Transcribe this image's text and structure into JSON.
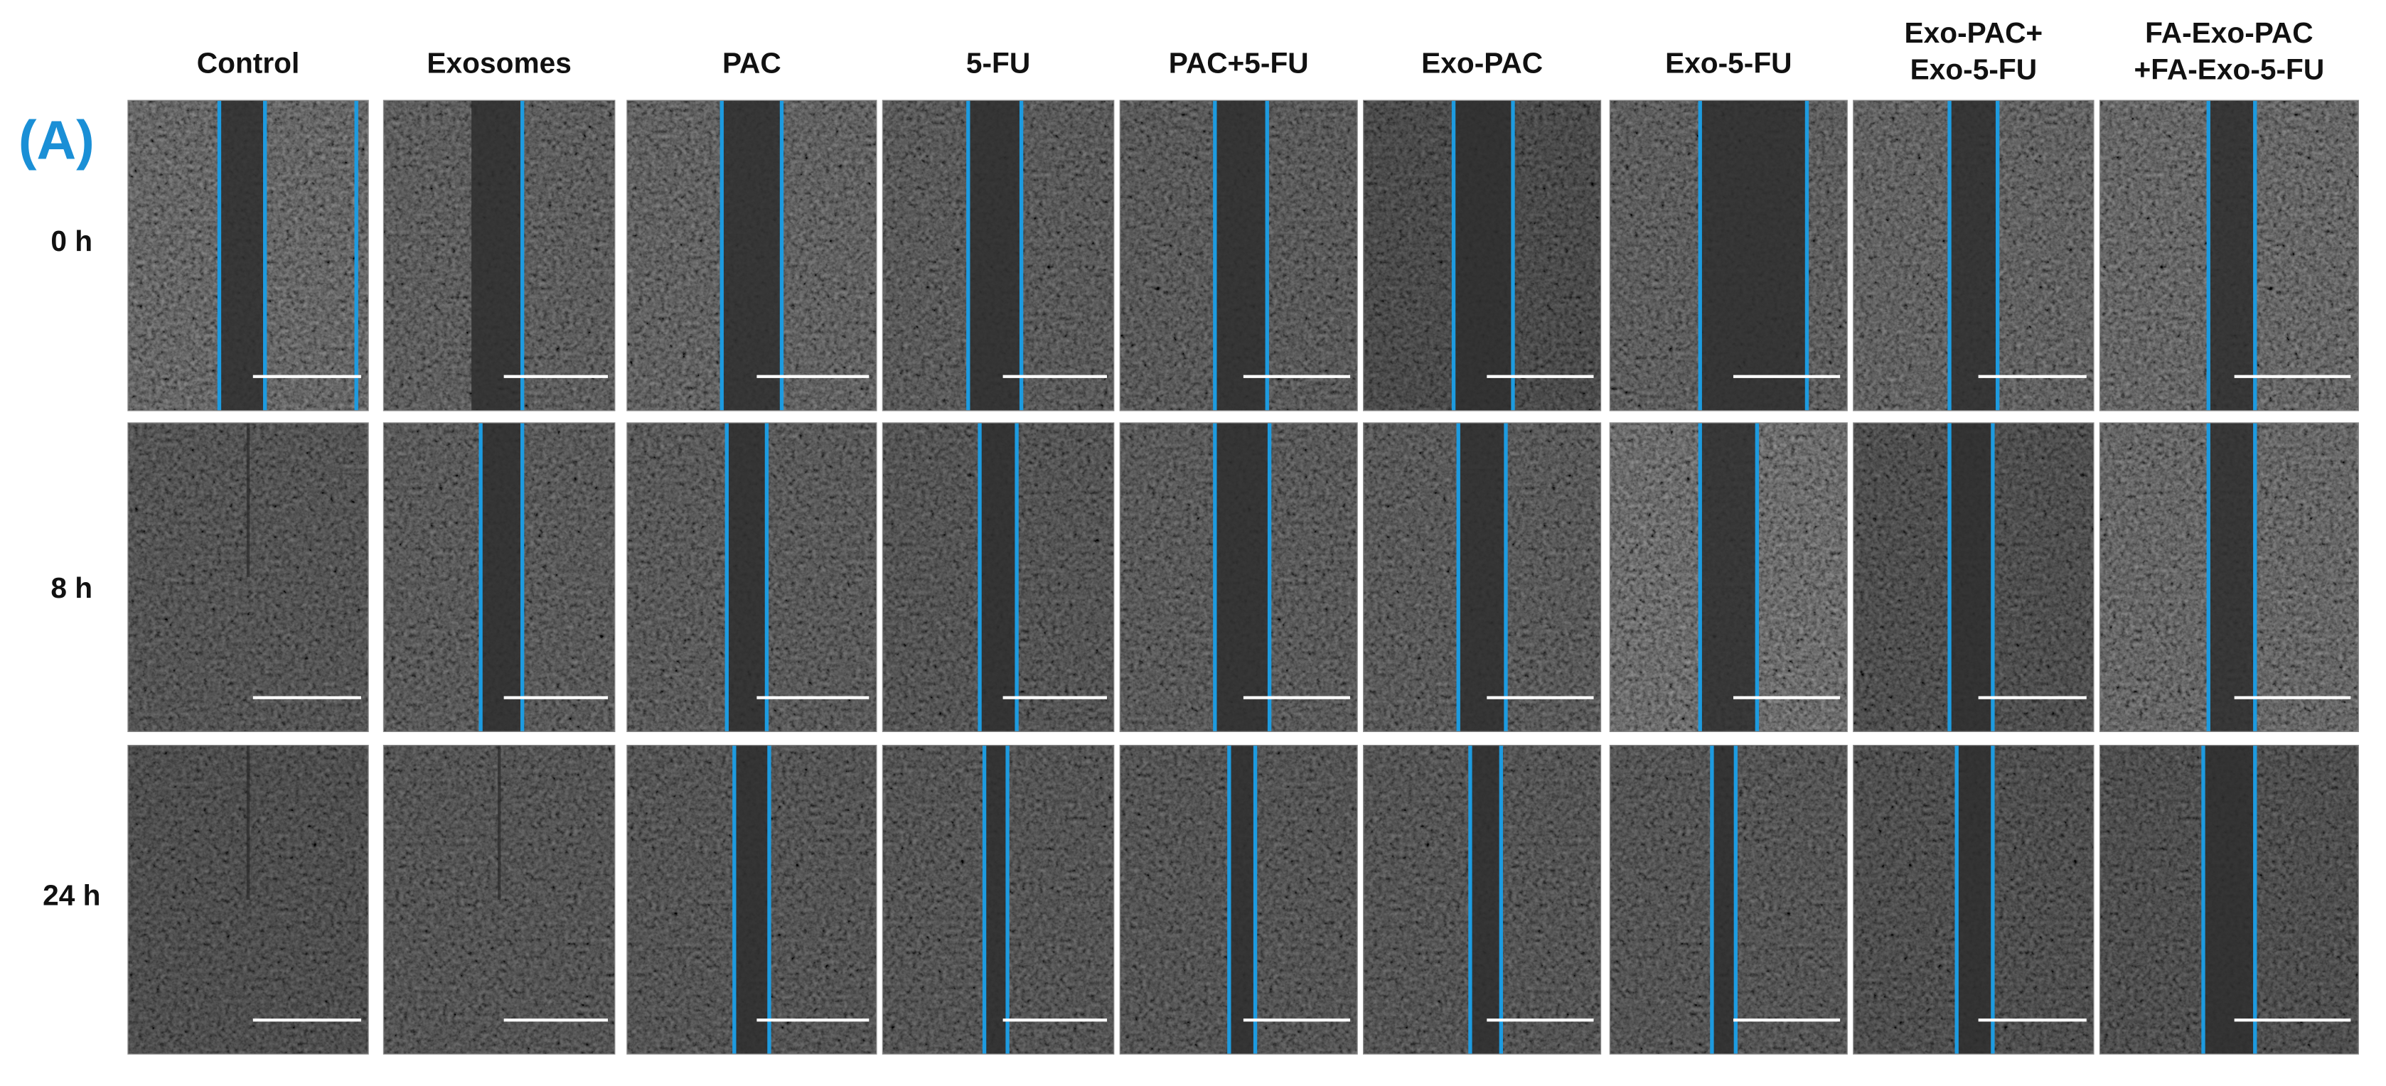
{
  "panel_label": "(A)",
  "columns": [
    [
      "Control"
    ],
    [
      "Exosomes"
    ],
    [
      "PAC"
    ],
    [
      "5-FU"
    ],
    [
      "PAC+5-FU"
    ],
    [
      "Exo-PAC"
    ],
    [
      "Exo-5-FU"
    ],
    [
      "Exo-PAC+",
      "Exo-5-FU"
    ],
    [
      "FA-Exo-PAC",
      "+FA-Exo-5-FU"
    ]
  ],
  "rows": [
    "0 h",
    "8 h",
    "24 h"
  ]
}
